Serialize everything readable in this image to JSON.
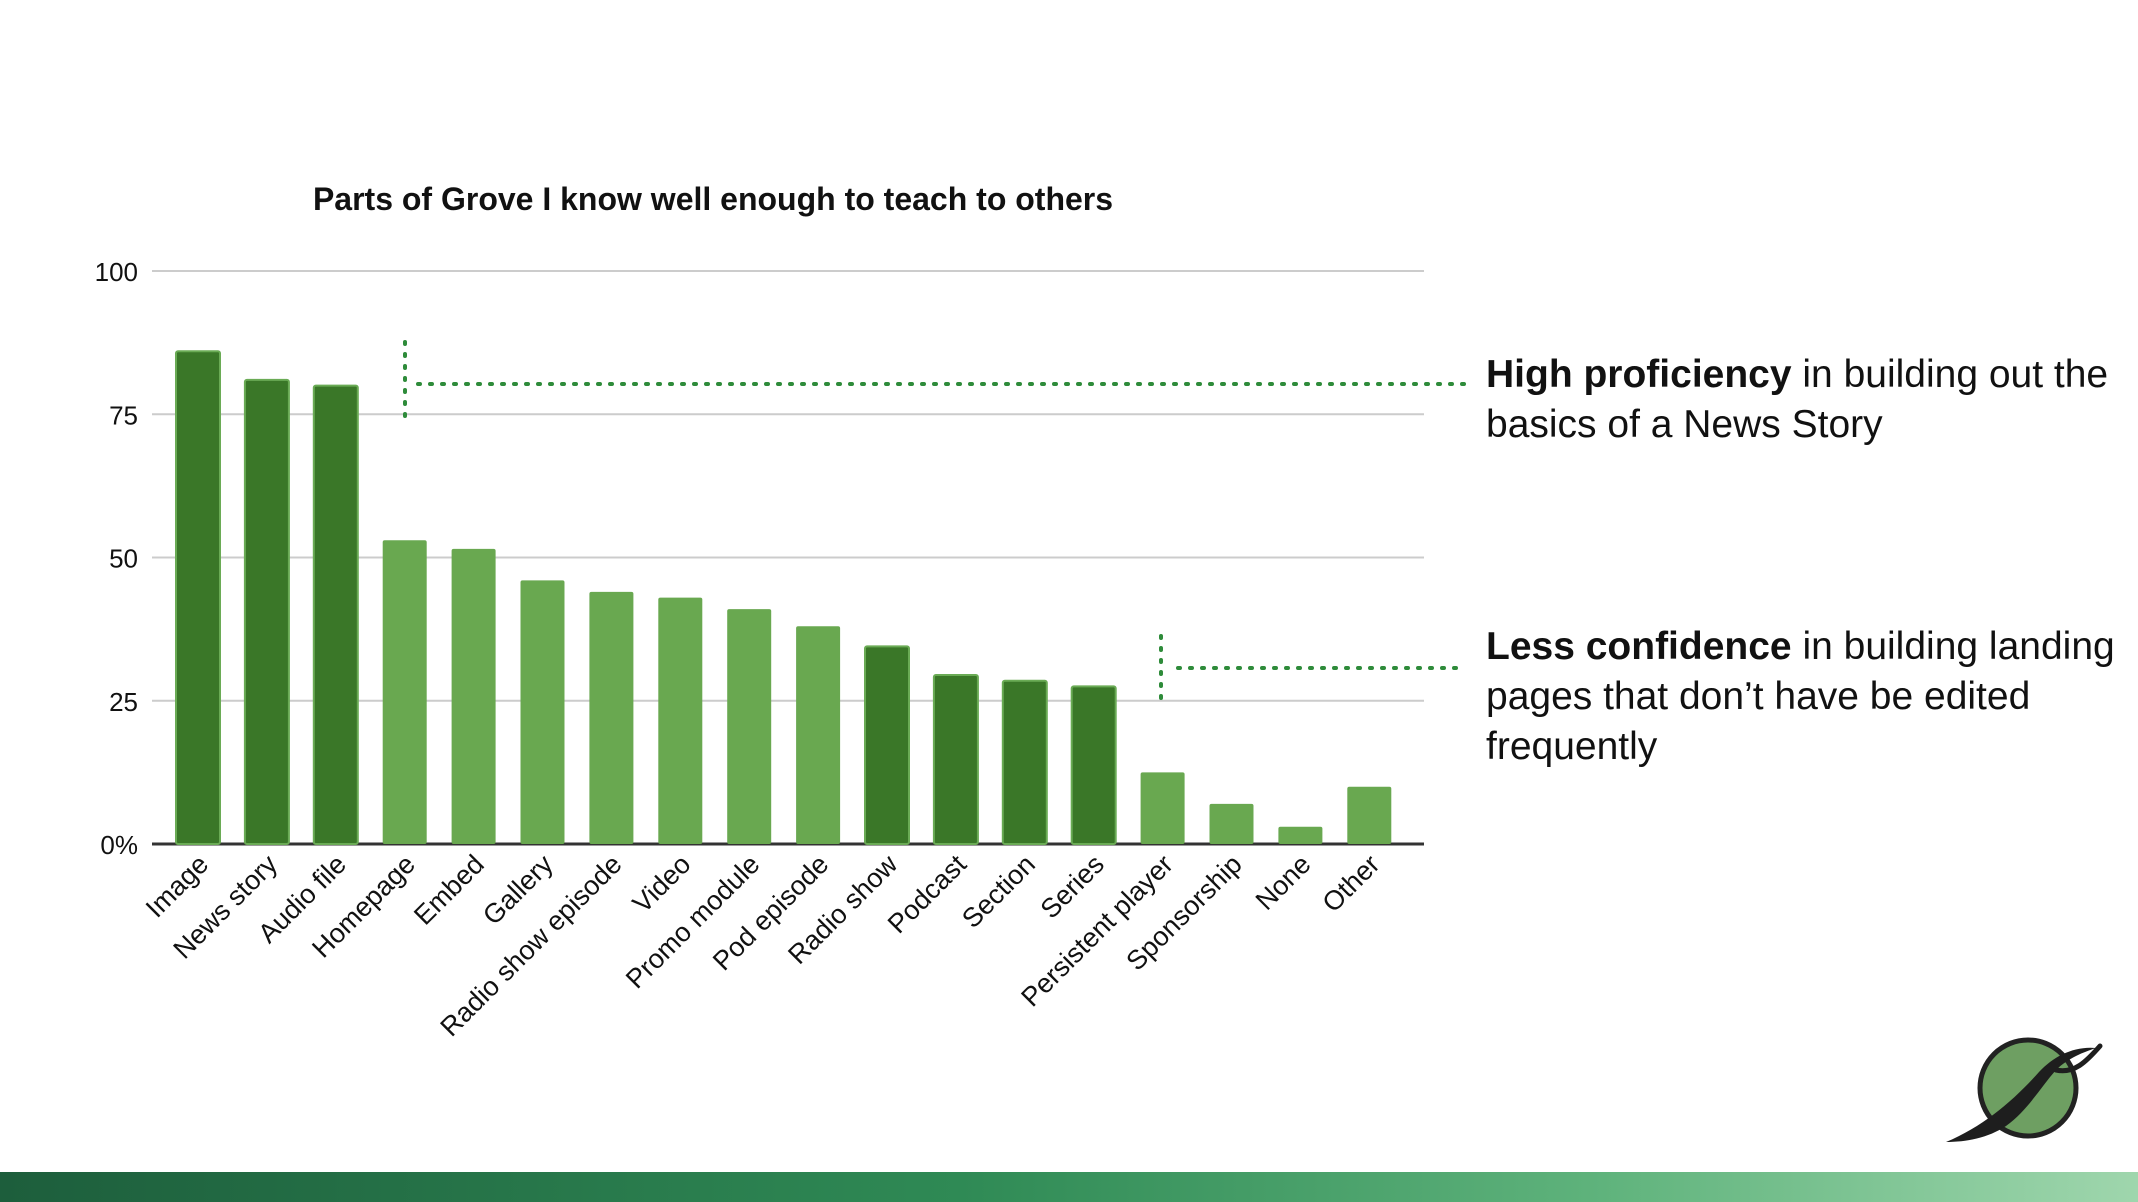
{
  "chart_data": {
    "type": "bar",
    "title": "Parts of Grove I know well enough to teach to others",
    "xlabel": "",
    "ylabel": "",
    "ylim": [
      0,
      100
    ],
    "yticks": [
      "0%",
      "25",
      "50",
      "75",
      "100"
    ],
    "grid": true,
    "categories": [
      "Image",
      "News story",
      "Audio file",
      "Homepage",
      "Embed",
      "Gallery",
      "Radio show episode",
      "Video",
      "Promo module",
      "Pod episode",
      "Radio show",
      "Podcast",
      "Section",
      "Series",
      "Persistent player",
      "Sponsorship",
      "None",
      "Other"
    ],
    "values": [
      86,
      81,
      80,
      53,
      51.5,
      46,
      44,
      43,
      41,
      38,
      34.5,
      29.5,
      28.5,
      27.5,
      12.5,
      7,
      3,
      10
    ],
    "highlighted": [
      true,
      true,
      true,
      false,
      false,
      false,
      false,
      false,
      false,
      false,
      true,
      true,
      true,
      true,
      false,
      false,
      false,
      false
    ],
    "colors": {
      "highlight": "#3a7728",
      "highlight_edge": "#6aab55",
      "normal": "#69a850",
      "grid": "#cccccc",
      "baseline": "#333333",
      "dotted": "#2e8b3a"
    }
  },
  "callouts": {
    "high": {
      "bold": "High proficiency",
      "rest": " in building out the basics of a News Story"
    },
    "low": {
      "bold": "Less confidence",
      "rest": " in building landing pages that don’t have be edited frequently"
    }
  },
  "logo": {
    "icon": "grove-leaf-logo-icon"
  }
}
